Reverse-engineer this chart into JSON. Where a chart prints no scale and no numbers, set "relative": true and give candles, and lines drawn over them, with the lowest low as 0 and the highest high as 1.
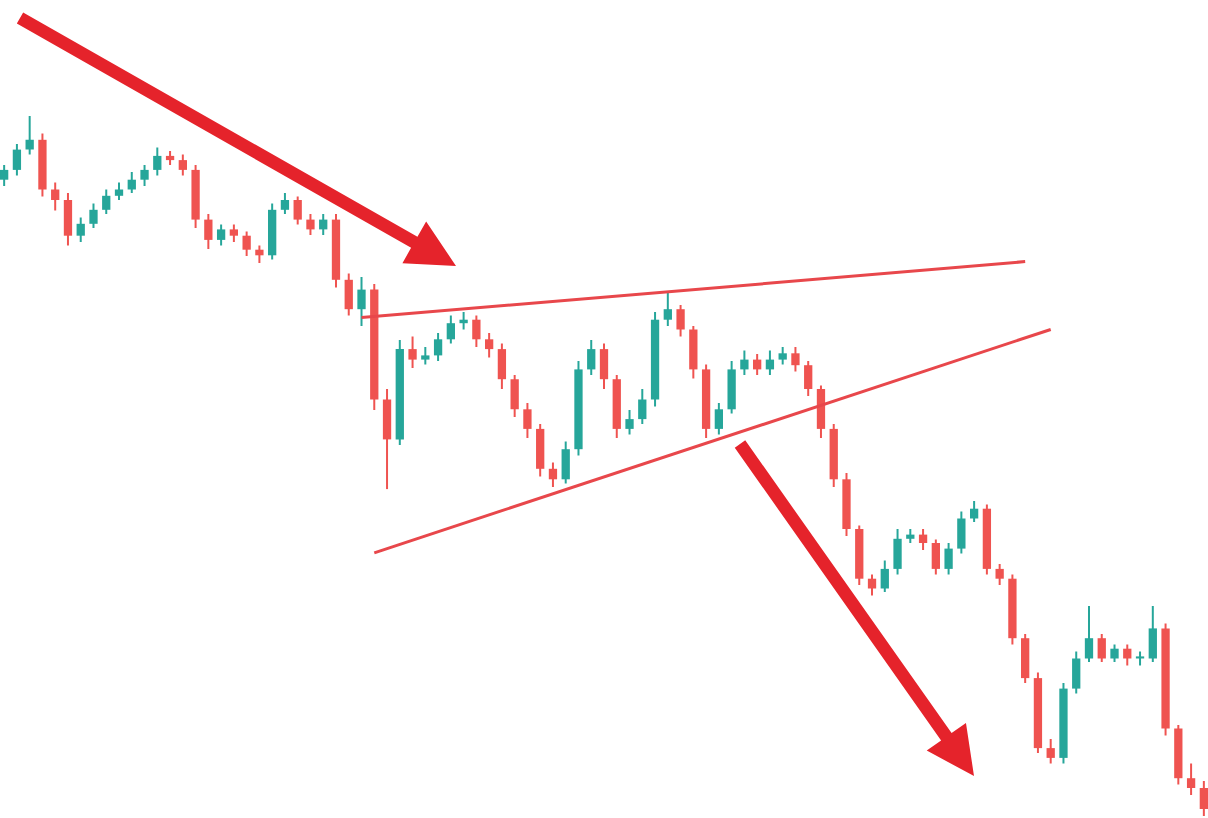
{
  "chart_data": {
    "type": "candlestick",
    "relative": true,
    "categories": [
      null,
      null,
      null,
      null,
      null,
      null,
      null,
      null,
      null,
      null,
      null,
      null,
      null,
      null,
      null,
      null,
      null,
      null,
      null,
      null,
      null,
      null,
      null,
      null,
      null,
      null,
      null,
      null,
      null,
      null,
      null,
      null,
      null,
      null,
      null,
      null,
      null,
      null,
      null,
      null,
      null,
      null,
      null,
      null,
      null,
      null,
      null,
      null,
      null,
      null,
      null,
      null,
      null,
      null,
      null,
      null,
      null,
      null,
      null,
      null,
      null,
      null,
      null,
      null,
      null,
      null,
      null,
      null,
      null,
      null,
      null,
      null,
      null,
      null,
      null,
      null,
      null,
      null,
      null,
      null,
      null,
      null,
      null,
      null,
      null,
      null,
      null,
      null,
      null,
      null,
      null,
      null,
      null,
      null,
      null
    ],
    "ohlc": [
      [
        0.909,
        0.93,
        0.9,
        0.923
      ],
      [
        0.923,
        0.96,
        0.915,
        0.952
      ],
      [
        0.952,
        1.0,
        0.945,
        0.966
      ],
      [
        0.966,
        0.975,
        0.885,
        0.895
      ],
      [
        0.895,
        0.905,
        0.865,
        0.88
      ],
      [
        0.88,
        0.89,
        0.815,
        0.829
      ],
      [
        0.829,
        0.855,
        0.82,
        0.846
      ],
      [
        0.846,
        0.875,
        0.84,
        0.866
      ],
      [
        0.866,
        0.895,
        0.86,
        0.886
      ],
      [
        0.886,
        0.905,
        0.88,
        0.895
      ],
      [
        0.895,
        0.92,
        0.89,
        0.909
      ],
      [
        0.909,
        0.93,
        0.9,
        0.923
      ],
      [
        0.923,
        0.955,
        0.915,
        0.943
      ],
      [
        0.943,
        0.95,
        0.93,
        0.937
      ],
      [
        0.937,
        0.945,
        0.915,
        0.923
      ],
      [
        0.923,
        0.93,
        0.84,
        0.852
      ],
      [
        0.852,
        0.86,
        0.81,
        0.823
      ],
      [
        0.823,
        0.845,
        0.815,
        0.838
      ],
      [
        0.838,
        0.845,
        0.82,
        0.829
      ],
      [
        0.829,
        0.835,
        0.8,
        0.809
      ],
      [
        0.809,
        0.815,
        0.79,
        0.801
      ],
      [
        0.801,
        0.875,
        0.795,
        0.866
      ],
      [
        0.866,
        0.89,
        0.86,
        0.88
      ],
      [
        0.88,
        0.885,
        0.845,
        0.852
      ],
      [
        0.852,
        0.86,
        0.83,
        0.838
      ],
      [
        0.838,
        0.86,
        0.83,
        0.852
      ],
      [
        0.852,
        0.86,
        0.755,
        0.766
      ],
      [
        0.766,
        0.775,
        0.715,
        0.724
      ],
      [
        0.724,
        0.77,
        0.7,
        0.752
      ],
      [
        0.752,
        0.76,
        0.58,
        0.595
      ],
      [
        0.595,
        0.61,
        0.467,
        0.538
      ],
      [
        0.538,
        0.68,
        0.53,
        0.667
      ],
      [
        0.667,
        0.685,
        0.64,
        0.652
      ],
      [
        0.652,
        0.67,
        0.645,
        0.658
      ],
      [
        0.658,
        0.69,
        0.65,
        0.681
      ],
      [
        0.681,
        0.715,
        0.675,
        0.704
      ],
      [
        0.704,
        0.72,
        0.695,
        0.709
      ],
      [
        0.709,
        0.715,
        0.67,
        0.681
      ],
      [
        0.681,
        0.69,
        0.655,
        0.667
      ],
      [
        0.667,
        0.675,
        0.61,
        0.624
      ],
      [
        0.624,
        0.63,
        0.57,
        0.581
      ],
      [
        0.581,
        0.59,
        0.54,
        0.553
      ],
      [
        0.553,
        0.56,
        0.485,
        0.496
      ],
      [
        0.496,
        0.505,
        0.47,
        0.481
      ],
      [
        0.481,
        0.535,
        0.475,
        0.524
      ],
      [
        0.524,
        0.65,
        0.515,
        0.638
      ],
      [
        0.638,
        0.68,
        0.63,
        0.667
      ],
      [
        0.667,
        0.675,
        0.61,
        0.624
      ],
      [
        0.624,
        0.63,
        0.54,
        0.553
      ],
      [
        0.553,
        0.58,
        0.545,
        0.567
      ],
      [
        0.567,
        0.61,
        0.56,
        0.595
      ],
      [
        0.595,
        0.72,
        0.585,
        0.709
      ],
      [
        0.709,
        0.75,
        0.7,
        0.724
      ],
      [
        0.724,
        0.73,
        0.685,
        0.695
      ],
      [
        0.695,
        0.7,
        0.625,
        0.638
      ],
      [
        0.638,
        0.645,
        0.54,
        0.553
      ],
      [
        0.553,
        0.59,
        0.545,
        0.581
      ],
      [
        0.581,
        0.65,
        0.575,
        0.638
      ],
      [
        0.638,
        0.665,
        0.63,
        0.652
      ],
      [
        0.652,
        0.66,
        0.63,
        0.638
      ],
      [
        0.638,
        0.665,
        0.63,
        0.652
      ],
      [
        0.652,
        0.67,
        0.645,
        0.661
      ],
      [
        0.661,
        0.67,
        0.635,
        0.644
      ],
      [
        0.644,
        0.65,
        0.6,
        0.61
      ],
      [
        0.61,
        0.615,
        0.54,
        0.553
      ],
      [
        0.553,
        0.56,
        0.47,
        0.481
      ],
      [
        0.481,
        0.49,
        0.4,
        0.41
      ],
      [
        0.41,
        0.415,
        0.33,
        0.339
      ],
      [
        0.339,
        0.345,
        0.315,
        0.325
      ],
      [
        0.325,
        0.365,
        0.32,
        0.353
      ],
      [
        0.353,
        0.41,
        0.345,
        0.396
      ],
      [
        0.396,
        0.41,
        0.39,
        0.402
      ],
      [
        0.402,
        0.41,
        0.38,
        0.39
      ],
      [
        0.39,
        0.395,
        0.345,
        0.353
      ],
      [
        0.353,
        0.39,
        0.345,
        0.382
      ],
      [
        0.382,
        0.435,
        0.375,
        0.425
      ],
      [
        0.425,
        0.45,
        0.42,
        0.439
      ],
      [
        0.439,
        0.445,
        0.345,
        0.353
      ],
      [
        0.353,
        0.36,
        0.33,
        0.339
      ],
      [
        0.339,
        0.345,
        0.245,
        0.254
      ],
      [
        0.254,
        0.26,
        0.19,
        0.197
      ],
      [
        0.197,
        0.205,
        0.09,
        0.097
      ],
      [
        0.097,
        0.11,
        0.075,
        0.083
      ],
      [
        0.083,
        0.19,
        0.075,
        0.182
      ],
      [
        0.182,
        0.235,
        0.175,
        0.225
      ],
      [
        0.225,
        0.3,
        0.22,
        0.254
      ],
      [
        0.254,
        0.26,
        0.22,
        0.225
      ],
      [
        0.225,
        0.245,
        0.22,
        0.239
      ],
      [
        0.239,
        0.245,
        0.215,
        0.225
      ],
      [
        0.225,
        0.235,
        0.215,
        0.228
      ],
      [
        0.225,
        0.3,
        0.22,
        0.268
      ],
      [
        0.268,
        0.275,
        0.115,
        0.125
      ],
      [
        0.125,
        0.13,
        0.045,
        0.054
      ],
      [
        0.054,
        0.075,
        0.03,
        0.04
      ],
      [
        0.04,
        0.05,
        0,
        0.01
      ]
    ],
    "colors": [
      "#26a69a",
      "#26a69a",
      "#26a69a",
      "#ef5350",
      "#ef5350",
      "#ef5350",
      "#26a69a",
      "#26a69a",
      "#26a69a",
      "#26a69a",
      "#26a69a",
      "#26a69a",
      "#26a69a",
      "#ef5350",
      "#ef5350",
      "#ef5350",
      "#ef5350",
      "#26a69a",
      "#ef5350",
      "#ef5350",
      "#ef5350",
      "#26a69a",
      "#26a69a",
      "#ef5350",
      "#ef5350",
      "#26a69a",
      "#ef5350",
      "#ef5350",
      "#26a69a",
      "#ef5350",
      "#ef5350",
      "#26a69a",
      "#ef5350",
      "#26a69a",
      "#26a69a",
      "#26a69a",
      "#26a69a",
      "#ef5350",
      "#ef5350",
      "#ef5350",
      "#ef5350",
      "#ef5350",
      "#ef5350",
      "#ef5350",
      "#26a69a",
      "#26a69a",
      "#26a69a",
      "#ef5350",
      "#ef5350",
      "#26a69a",
      "#26a69a",
      "#26a69a",
      "#26a69a",
      "#ef5350",
      "#ef5350",
      "#ef5350",
      "#26a69a",
      "#26a69a",
      "#26a69a",
      "#ef5350",
      "#26a69a",
      "#26a69a",
      "#ef5350",
      "#ef5350",
      "#ef5350",
      "#ef5350",
      "#ef5350",
      "#ef5350",
      "#ef5350",
      "#26a69a",
      "#26a69a",
      "#26a69a",
      "#ef5350",
      "#ef5350",
      "#26a69a",
      "#26a69a",
      "#26a69a",
      "#ef5350",
      "#ef5350",
      "#ef5350",
      "#ef5350",
      "#ef5350",
      "#ef5350",
      "#26a69a",
      "#26a69a",
      "#26a69a",
      "#ef5350",
      "#26a69a",
      "#ef5350",
      "#26a69a",
      "#26a69a",
      "#ef5350",
      "#ef5350",
      "#ef5350",
      "#ef5350"
    ],
    "series": [
      {
        "type": "line",
        "color": "#e8474b",
        "values": [
          null,
          null,
          null,
          null,
          null,
          null,
          null,
          null,
          null,
          null,
          null,
          null,
          null,
          null,
          null,
          null,
          null,
          null,
          null,
          null,
          null,
          null,
          null,
          null,
          null,
          null,
          null,
          null,
          0.712,
          null,
          null,
          null,
          null,
          null,
          null,
          null,
          null,
          null,
          null,
          null,
          null,
          null,
          null,
          null,
          null,
          null,
          null,
          null,
          null,
          null,
          null,
          null,
          null,
          null,
          null,
          null,
          null,
          null,
          null,
          null,
          null,
          null,
          null,
          null,
          null,
          null,
          null,
          null,
          null,
          null,
          null,
          null,
          null,
          null,
          null,
          null,
          null,
          null,
          null,
          null,
          0.792,
          null,
          null,
          null,
          null,
          null,
          null,
          null,
          null,
          null,
          null,
          null,
          null,
          null,
          null
        ]
      },
      {
        "type": "line",
        "color": "#e8474b",
        "values": [
          null,
          null,
          null,
          null,
          null,
          null,
          null,
          null,
          null,
          null,
          null,
          null,
          null,
          null,
          null,
          null,
          null,
          null,
          null,
          null,
          null,
          null,
          null,
          null,
          null,
          null,
          null,
          null,
          null,
          0.376,
          null,
          null,
          null,
          null,
          null,
          null,
          null,
          null,
          null,
          null,
          null,
          null,
          null,
          null,
          null,
          null,
          null,
          null,
          null,
          null,
          null,
          null,
          null,
          null,
          null,
          null,
          null,
          null,
          null,
          null,
          null,
          null,
          null,
          null,
          null,
          null,
          null,
          null,
          null,
          null,
          null,
          null,
          null,
          null,
          null,
          null,
          null,
          null,
          null,
          null,
          null,
          null,
          0.695,
          null,
          null,
          null,
          null,
          null,
          null,
          null,
          null,
          null,
          null,
          null,
          null
        ]
      }
    ]
  }
}
